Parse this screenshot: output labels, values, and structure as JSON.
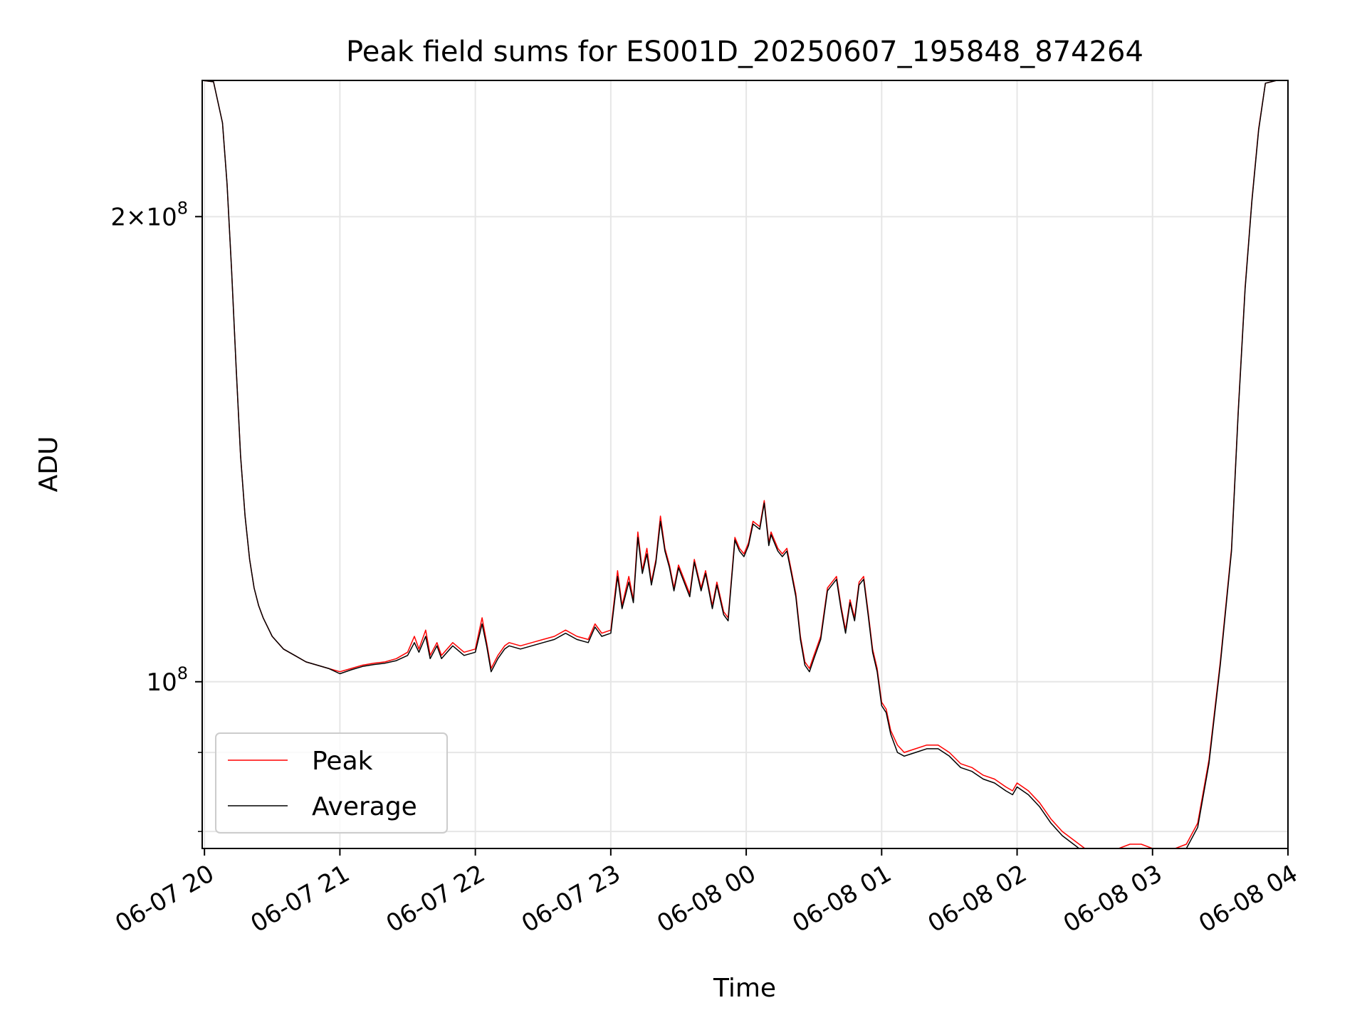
{
  "chart_data": {
    "type": "line",
    "title": "Peak field sums for ES001D_20250607_195848_874264",
    "xlabel": "Time",
    "ylabel": "ADU",
    "yscale": "log",
    "ylim": [
      78000000,
      245000000
    ],
    "xlim": [
      "2025-06-07 19:59",
      "2025-06-08 04:00"
    ],
    "x_ticks": [
      {
        "t": "2025-06-07 20:00",
        "label": "06-07 20"
      },
      {
        "t": "2025-06-07 21:00",
        "label": "06-07 21"
      },
      {
        "t": "2025-06-07 22:00",
        "label": "06-07 22"
      },
      {
        "t": "2025-06-07 23:00",
        "label": "06-07 23"
      },
      {
        "t": "2025-06-08 00:00",
        "label": "06-08 00"
      },
      {
        "t": "2025-06-08 01:00",
        "label": "06-08 01"
      },
      {
        "t": "2025-06-08 02:00",
        "label": "06-08 02"
      },
      {
        "t": "2025-06-08 03:00",
        "label": "06-08 03"
      },
      {
        "t": "2025-06-08 04:00",
        "label": "06-08 04"
      }
    ],
    "y_major_ticks": [
      {
        "value": 100000000,
        "base": "10",
        "exp": "8"
      },
      {
        "value": 200000000,
        "base": "2×10",
        "exp": "8"
      }
    ],
    "y_minor_ticks": [
      80000000,
      90000000
    ],
    "grid": true,
    "legend_position": "lower-left",
    "series": [
      {
        "name": "Peak",
        "color": "#ff0000"
      },
      {
        "name": "Average",
        "color": "#000000"
      }
    ],
    "x": [
      "2025-06-07 19:59",
      "2025-06-07 20:04",
      "2025-06-07 20:08",
      "2025-06-07 20:10",
      "2025-06-07 20:12",
      "2025-06-07 20:14",
      "2025-06-07 20:16",
      "2025-06-07 20:18",
      "2025-06-07 20:20",
      "2025-06-07 20:22",
      "2025-06-07 20:24",
      "2025-06-07 20:26",
      "2025-06-07 20:30",
      "2025-06-07 20:35",
      "2025-06-07 20:40",
      "2025-06-07 20:45",
      "2025-06-07 20:50",
      "2025-06-07 20:55",
      "2025-06-07 21:00",
      "2025-06-07 21:05",
      "2025-06-07 21:10",
      "2025-06-07 21:15",
      "2025-06-07 21:20",
      "2025-06-07 21:25",
      "2025-06-07 21:30",
      "2025-06-07 21:33",
      "2025-06-07 21:35",
      "2025-06-07 21:38",
      "2025-06-07 21:40",
      "2025-06-07 21:43",
      "2025-06-07 21:45",
      "2025-06-07 21:50",
      "2025-06-07 21:55",
      "2025-06-07 22:00",
      "2025-06-07 22:03",
      "2025-06-07 22:05",
      "2025-06-07 22:07",
      "2025-06-07 22:10",
      "2025-06-07 22:13",
      "2025-06-07 22:15",
      "2025-06-07 22:20",
      "2025-06-07 22:25",
      "2025-06-07 22:30",
      "2025-06-07 22:35",
      "2025-06-07 22:40",
      "2025-06-07 22:45",
      "2025-06-07 22:50",
      "2025-06-07 22:53",
      "2025-06-07 22:56",
      "2025-06-07 23:00",
      "2025-06-07 23:03",
      "2025-06-07 23:05",
      "2025-06-07 23:08",
      "2025-06-07 23:10",
      "2025-06-07 23:12",
      "2025-06-07 23:14",
      "2025-06-07 23:16",
      "2025-06-07 23:18",
      "2025-06-07 23:20",
      "2025-06-07 23:22",
      "2025-06-07 23:24",
      "2025-06-07 23:26",
      "2025-06-07 23:28",
      "2025-06-07 23:30",
      "2025-06-07 23:32",
      "2025-06-07 23:35",
      "2025-06-07 23:37",
      "2025-06-07 23:40",
      "2025-06-07 23:42",
      "2025-06-07 23:45",
      "2025-06-07 23:47",
      "2025-06-07 23:50",
      "2025-06-07 23:52",
      "2025-06-07 23:55",
      "2025-06-07 23:57",
      "2025-06-07 23:59",
      "2025-06-08 00:01",
      "2025-06-08 00:03",
      "2025-06-08 00:06",
      "2025-06-08 00:08",
      "2025-06-08 00:10",
      "2025-06-08 00:11",
      "2025-06-08 00:12",
      "2025-06-08 00:14",
      "2025-06-08 00:16",
      "2025-06-08 00:18",
      "2025-06-08 00:20",
      "2025-06-08 00:22",
      "2025-06-08 00:24",
      "2025-06-08 00:26",
      "2025-06-08 00:28",
      "2025-06-08 00:30",
      "2025-06-08 00:33",
      "2025-06-08 00:36",
      "2025-06-08 00:40",
      "2025-06-08 00:42",
      "2025-06-08 00:44",
      "2025-06-08 00:46",
      "2025-06-08 00:48",
      "2025-06-08 00:50",
      "2025-06-08 00:52",
      "2025-06-08 00:54",
      "2025-06-08 00:56",
      "2025-06-08 00:58",
      "2025-06-08 01:00",
      "2025-06-08 01:02",
      "2025-06-08 01:04",
      "2025-06-08 01:07",
      "2025-06-08 01:10",
      "2025-06-08 01:15",
      "2025-06-08 01:20",
      "2025-06-08 01:25",
      "2025-06-08 01:30",
      "2025-06-08 01:35",
      "2025-06-08 01:40",
      "2025-06-08 01:45",
      "2025-06-08 01:50",
      "2025-06-08 01:55",
      "2025-06-08 01:58",
      "2025-06-08 02:00",
      "2025-06-08 02:05",
      "2025-06-08 02:10",
      "2025-06-08 02:15",
      "2025-06-08 02:20",
      "2025-06-08 02:25",
      "2025-06-08 02:30",
      "2025-06-08 02:35",
      "2025-06-08 02:40",
      "2025-06-08 02:45",
      "2025-06-08 02:50",
      "2025-06-08 02:55",
      "2025-06-08 03:00",
      "2025-06-08 03:05",
      "2025-06-08 03:10",
      "2025-06-08 03:15",
      "2025-06-08 03:20",
      "2025-06-08 03:25",
      "2025-06-08 03:30",
      "2025-06-08 03:35",
      "2025-06-08 03:38",
      "2025-06-08 03:41",
      "2025-06-08 03:44",
      "2025-06-08 03:47",
      "2025-06-08 03:50",
      "2025-06-08 03:55",
      "2025-06-08 04:00"
    ],
    "peak": [
      245000000,
      244500000,
      230000000,
      210000000,
      185000000,
      160000000,
      140000000,
      128000000,
      120000000,
      115000000,
      112000000,
      110000000,
      107000000,
      105000000,
      104000000,
      103000000,
      102500000,
      102000000,
      101500000,
      102000000,
      102500000,
      102800000,
      103000000,
      103500000,
      104500000,
      107000000,
      105000000,
      108000000,
      104000000,
      106000000,
      104000000,
      106000000,
      104500000,
      105000000,
      110000000,
      106000000,
      102000000,
      104000000,
      105500000,
      106000000,
      105500000,
      106000000,
      106500000,
      107000000,
      108000000,
      107000000,
      106500000,
      109000000,
      107500000,
      108000000,
      118000000,
      112000000,
      117000000,
      113000000,
      125000000,
      118000000,
      122000000,
      116000000,
      120000000,
      128000000,
      122000000,
      119000000,
      115000000,
      119000000,
      117000000,
      114000000,
      120000000,
      115000000,
      118000000,
      112000000,
      116000000,
      111000000,
      110000000,
      124000000,
      122000000,
      121000000,
      123000000,
      127000000,
      126000000,
      131000000,
      123000000,
      125000000,
      124000000,
      122000000,
      121000000,
      122000000,
      118000000,
      114000000,
      107000000,
      103000000,
      102000000,
      104000000,
      107000000,
      115000000,
      117000000,
      112000000,
      108000000,
      113000000,
      110000000,
      116000000,
      117000000,
      111000000,
      105000000,
      102000000,
      97000000,
      96000000,
      93000000,
      91000000,
      90000000,
      90500000,
      91000000,
      91000000,
      90000000,
      88500000,
      88000000,
      87000000,
      86500000,
      85500000,
      85000000,
      86000000,
      85000000,
      83500000,
      81500000,
      80000000,
      79000000,
      78000000,
      77000000,
      77500000,
      78000000,
      78500000,
      78500000,
      78000000,
      78000000,
      78000000,
      78500000,
      81000000,
      89000000,
      103000000,
      122000000,
      150000000,
      180000000,
      205000000,
      228000000,
      244000000,
      245000000
    ],
    "average": [
      245000000,
      244500000,
      230000000,
      210000000,
      185000000,
      160000000,
      140000000,
      128000000,
      120000000,
      115000000,
      112000000,
      110000000,
      107000000,
      105000000,
      104000000,
      103000000,
      102500000,
      102000000,
      101200000,
      101800000,
      102300000,
      102600000,
      102800000,
      103200000,
      104000000,
      106000000,
      104500000,
      107000000,
      103500000,
      105500000,
      103500000,
      105500000,
      104000000,
      104500000,
      109000000,
      105500000,
      101500000,
      103500000,
      105000000,
      105500000,
      105000000,
      105500000,
      106000000,
      106500000,
      107500000,
      106500000,
      106000000,
      108500000,
      107000000,
      107500000,
      117000000,
      111500000,
      116000000,
      112500000,
      124000000,
      117500000,
      121000000,
      115500000,
      119500000,
      127000000,
      121500000,
      118500000,
      114500000,
      118500000,
      116500000,
      113500000,
      119500000,
      114500000,
      117500000,
      111500000,
      115500000,
      110500000,
      109500000,
      123500000,
      121500000,
      120500000,
      122500000,
      126500000,
      125500000,
      130500000,
      122500000,
      124500000,
      123500000,
      121500000,
      120500000,
      121500000,
      117500000,
      113500000,
      106500000,
      102500000,
      101500000,
      103500000,
      106500000,
      114500000,
      116500000,
      111500000,
      107500000,
      112500000,
      109500000,
      115500000,
      116500000,
      110500000,
      104500000,
      101500000,
      96500000,
      95500000,
      92500000,
      90000000,
      89500000,
      90000000,
      90500000,
      90500000,
      89500000,
      88000000,
      87500000,
      86500000,
      86000000,
      85000000,
      84500000,
      85500000,
      84500000,
      83000000,
      81000000,
      79500000,
      78500000,
      77500000,
      76800000,
      77000000,
      77600000,
      78000000,
      78000000,
      77500000,
      77600000,
      77600000,
      78000000,
      80500000,
      88500000,
      102500000,
      121500000,
      149500000,
      179500000,
      204500000,
      227500000,
      244000000,
      245000000
    ]
  }
}
